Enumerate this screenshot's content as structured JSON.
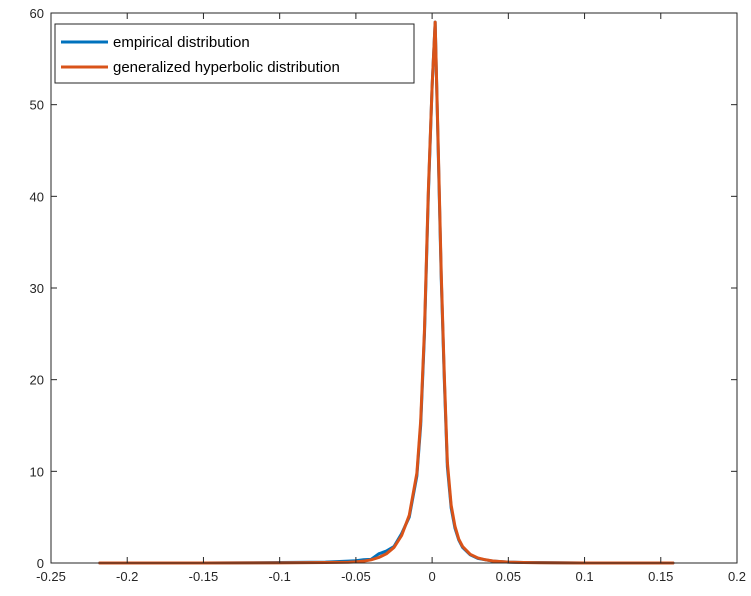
{
  "chart_data": {
    "type": "line",
    "title": "",
    "xlabel": "",
    "ylabel": "",
    "xlim": [
      -0.25,
      0.2
    ],
    "ylim": [
      0,
      60
    ],
    "x_ticks": [
      "-0.25",
      "-0.2",
      "-0.15",
      "-0.1",
      "-0.05",
      "0",
      "0.05",
      "0.1",
      "0.15",
      "0.2"
    ],
    "y_ticks": [
      "0",
      "10",
      "20",
      "30",
      "40",
      "50",
      "60"
    ],
    "x_tick_values": [
      -0.25,
      -0.2,
      -0.15,
      -0.1,
      -0.05,
      0,
      0.05,
      0.1,
      0.15,
      0.2
    ],
    "y_tick_values": [
      0,
      10,
      20,
      30,
      40,
      50,
      60
    ],
    "grid": false,
    "legend_position": "top-left",
    "series": [
      {
        "name": "empirical distribution",
        "color": "#0072BD",
        "x": [
          -0.218,
          -0.15,
          -0.1,
          -0.07,
          -0.055,
          -0.05,
          -0.045,
          -0.04,
          -0.035,
          -0.03,
          -0.025,
          -0.02,
          -0.015,
          -0.01,
          -0.0075,
          -0.005,
          -0.0025,
          0.0,
          0.002,
          0.004,
          0.006,
          0.008,
          0.01,
          0.0125,
          0.015,
          0.0175,
          0.02,
          0.025,
          0.03,
          0.035,
          0.04,
          0.05,
          0.06,
          0.07,
          0.1,
          0.13,
          0.158
        ],
        "y": [
          0.0,
          0.0,
          0.05,
          0.1,
          0.2,
          0.25,
          0.35,
          0.4,
          1.0,
          1.3,
          1.8,
          3.2,
          5.0,
          9.5,
          15.0,
          25.0,
          40.0,
          52.0,
          59.0,
          45.0,
          31.0,
          20.0,
          10.5,
          6.0,
          3.8,
          2.5,
          1.7,
          0.9,
          0.5,
          0.35,
          0.2,
          0.1,
          0.05,
          0.05,
          0.0,
          0.0,
          0.0
        ]
      },
      {
        "name": "generalized hyperbolic distribution",
        "color": "#D95319",
        "x": [
          -0.218,
          -0.15,
          -0.1,
          -0.07,
          -0.055,
          -0.05,
          -0.045,
          -0.04,
          -0.035,
          -0.03,
          -0.025,
          -0.02,
          -0.015,
          -0.01,
          -0.0075,
          -0.005,
          -0.0025,
          0.0,
          0.002,
          0.004,
          0.006,
          0.008,
          0.01,
          0.0125,
          0.015,
          0.0175,
          0.02,
          0.025,
          0.03,
          0.035,
          0.04,
          0.05,
          0.06,
          0.07,
          0.1,
          0.13,
          0.158
        ],
        "y": [
          0.0,
          0.0,
          0.02,
          0.05,
          0.08,
          0.12,
          0.2,
          0.35,
          0.6,
          1.0,
          1.7,
          3.0,
          5.2,
          9.8,
          15.5,
          25.5,
          40.5,
          52.0,
          59.0,
          45.5,
          31.5,
          20.5,
          11.0,
          6.3,
          4.0,
          2.6,
          1.8,
          0.95,
          0.55,
          0.35,
          0.22,
          0.1,
          0.05,
          0.03,
          0.0,
          0.0,
          0.0
        ]
      }
    ]
  }
}
